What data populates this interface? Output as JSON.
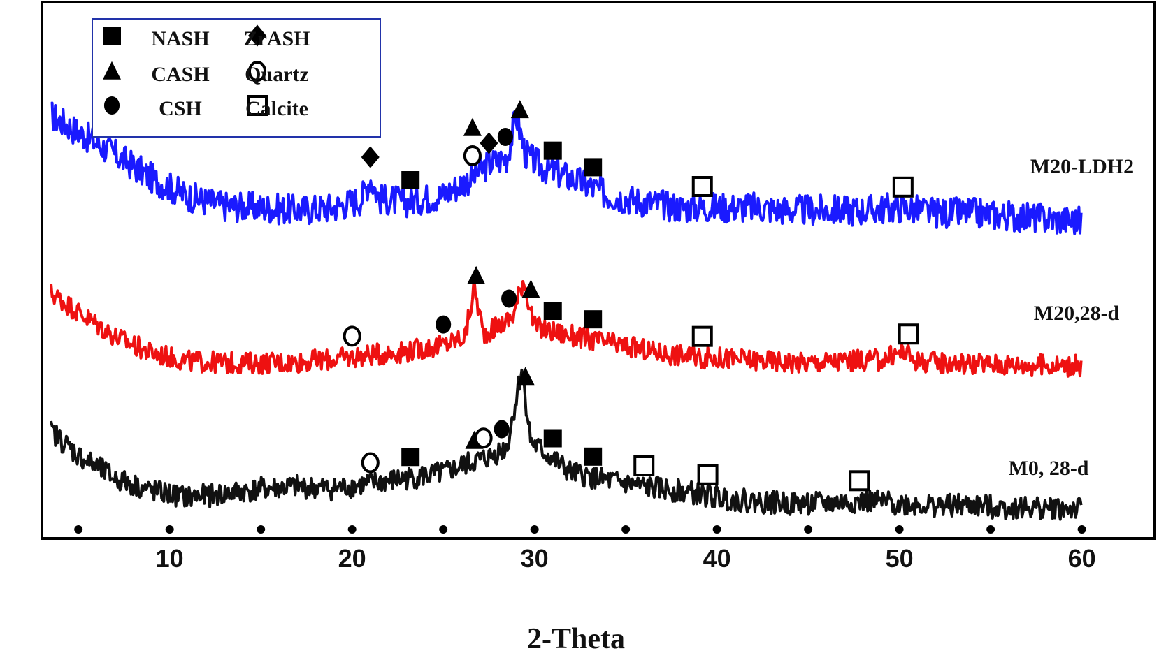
{
  "chart_data": {
    "type": "line",
    "title": "",
    "xlabel": "2-Theta",
    "ylabel": "",
    "xlim": [
      3,
      64
    ],
    "xticks": [
      10,
      20,
      30,
      40,
      50,
      60
    ],
    "grid": false,
    "legend_position": "top-left",
    "legend": [
      {
        "marker": "filled-square",
        "label": "NASH"
      },
      {
        "marker": "filled-diamond",
        "label": "ZrASH"
      },
      {
        "marker": "filled-triangle",
        "label": "CASH"
      },
      {
        "marker": "open-circle",
        "label": "Quartz"
      },
      {
        "marker": "filled-circle",
        "label": "CSH"
      },
      {
        "marker": "open-square",
        "label": "Calcite"
      }
    ],
    "series": [
      {
        "name": "M20-LDH2",
        "color": "#1a1aff",
        "x": [
          3.5,
          5,
          7,
          9,
          11,
          13,
          15,
          17,
          19,
          20.5,
          21,
          21.5,
          23,
          25,
          26.5,
          27.5,
          28.5,
          29,
          29.5,
          30.5,
          32,
          34,
          36,
          38,
          40,
          42,
          44,
          46,
          48,
          50,
          52,
          54,
          56,
          58,
          60
        ],
        "y": [
          0.9,
          0.78,
          0.62,
          0.45,
          0.32,
          0.25,
          0.24,
          0.22,
          0.24,
          0.3,
          0.45,
          0.3,
          0.28,
          0.33,
          0.45,
          0.55,
          0.6,
          0.9,
          0.62,
          0.52,
          0.45,
          0.33,
          0.28,
          0.24,
          0.24,
          0.24,
          0.22,
          0.22,
          0.22,
          0.24,
          0.2,
          0.2,
          0.18,
          0.16,
          0.14
        ]
      },
      {
        "name": "M20,28-d",
        "color": "#ee1111",
        "x": [
          3.5,
          5,
          7,
          9,
          11,
          13,
          15,
          17,
          19,
          21,
          23,
          25,
          26.2,
          26.7,
          27.2,
          28,
          28.8,
          29.4,
          30,
          31,
          33,
          35,
          37,
          39,
          41,
          43,
          45,
          47,
          49,
          50.2,
          51,
          53,
          55,
          57,
          60
        ],
        "y": [
          0.9,
          0.7,
          0.45,
          0.28,
          0.2,
          0.18,
          0.18,
          0.19,
          0.22,
          0.26,
          0.3,
          0.36,
          0.45,
          0.95,
          0.48,
          0.55,
          0.65,
          1.05,
          0.55,
          0.5,
          0.42,
          0.35,
          0.28,
          0.24,
          0.22,
          0.2,
          0.18,
          0.2,
          0.21,
          0.3,
          0.2,
          0.18,
          0.17,
          0.16,
          0.15
        ]
      },
      {
        "name": "M0, 28-d",
        "color": "#111111",
        "x": [
          3.5,
          5,
          7,
          9,
          11,
          13,
          15,
          17,
          19,
          21,
          23,
          25,
          26.5,
          27.5,
          28.5,
          29.3,
          29.8,
          30.5,
          32,
          34,
          36,
          38,
          40,
          42,
          44,
          46,
          48,
          50,
          52,
          54,
          56,
          58,
          60
        ],
        "y": [
          0.95,
          0.72,
          0.5,
          0.38,
          0.32,
          0.35,
          0.4,
          0.42,
          0.4,
          0.45,
          0.5,
          0.55,
          0.65,
          0.7,
          0.8,
          1.55,
          0.85,
          0.75,
          0.55,
          0.48,
          0.42,
          0.38,
          0.32,
          0.28,
          0.26,
          0.26,
          0.28,
          0.26,
          0.24,
          0.24,
          0.22,
          0.22,
          0.2
        ]
      }
    ],
    "annotations": [
      {
        "series": "M20-LDH2",
        "marker": "filled-diamond",
        "x": 21
      },
      {
        "series": "M20-LDH2",
        "marker": "filled-square",
        "x": 23.2
      },
      {
        "series": "M20-LDH2",
        "marker": "open-circle",
        "x": 26.6
      },
      {
        "series": "M20-LDH2",
        "marker": "filled-triangle",
        "x": 26.6
      },
      {
        "series": "M20-LDH2",
        "marker": "filled-diamond",
        "x": 27.5
      },
      {
        "series": "M20-LDH2",
        "marker": "filled-circle",
        "x": 28.4
      },
      {
        "series": "M20-LDH2",
        "marker": "filled-triangle",
        "x": 29.2
      },
      {
        "series": "M20-LDH2",
        "marker": "filled-square",
        "x": 31
      },
      {
        "series": "M20-LDH2",
        "marker": "filled-square",
        "x": 33.2
      },
      {
        "series": "M20-LDH2",
        "marker": "open-square",
        "x": 39.2
      },
      {
        "series": "M20-LDH2",
        "marker": "open-square",
        "x": 50.2
      },
      {
        "series": "M20,28-d",
        "marker": "open-circle",
        "x": 20
      },
      {
        "series": "M20,28-d",
        "marker": "filled-circle",
        "x": 25
      },
      {
        "series": "M20,28-d",
        "marker": "filled-triangle",
        "x": 26.8
      },
      {
        "series": "M20,28-d",
        "marker": "filled-circle",
        "x": 28.6
      },
      {
        "series": "M20,28-d",
        "marker": "filled-triangle",
        "x": 29.8
      },
      {
        "series": "M20,28-d",
        "marker": "filled-square",
        "x": 31
      },
      {
        "series": "M20,28-d",
        "marker": "filled-square",
        "x": 33.2
      },
      {
        "series": "M20,28-d",
        "marker": "open-square",
        "x": 39.2
      },
      {
        "series": "M20,28-d",
        "marker": "open-square",
        "x": 50.5
      },
      {
        "series": "M0, 28-d",
        "marker": "open-circle",
        "x": 21
      },
      {
        "series": "M0, 28-d",
        "marker": "filled-square",
        "x": 23.2
      },
      {
        "series": "M0, 28-d",
        "marker": "filled-triangle",
        "x": 26.7
      },
      {
        "series": "M0, 28-d",
        "marker": "open-circle",
        "x": 27.2
      },
      {
        "series": "M0, 28-d",
        "marker": "filled-circle",
        "x": 28.2
      },
      {
        "series": "M0, 28-d",
        "marker": "filled-triangle",
        "x": 29.5
      },
      {
        "series": "M0, 28-d",
        "marker": "filled-square",
        "x": 31
      },
      {
        "series": "M0, 28-d",
        "marker": "filled-square",
        "x": 33.2
      },
      {
        "series": "M0, 28-d",
        "marker": "open-square",
        "x": 36
      },
      {
        "series": "M0, 28-d",
        "marker": "open-square",
        "x": 39.5
      },
      {
        "series": "M0, 28-d",
        "marker": "open-square",
        "x": 47.8
      }
    ]
  }
}
